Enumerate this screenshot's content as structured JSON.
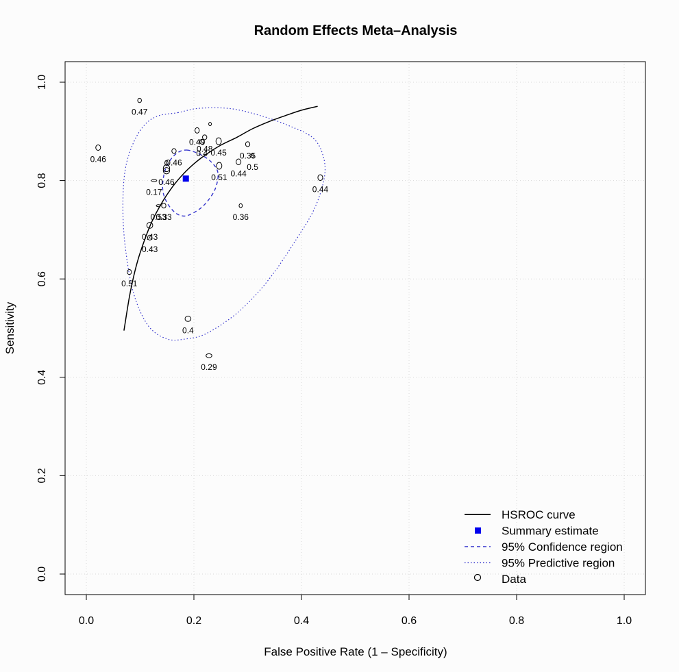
{
  "chart_data": {
    "type": "scatter",
    "title": "Random Effects Meta–Analysis",
    "xlabel": "False Positive Rate (1 – Specificity)",
    "ylabel": "Sensitivity",
    "xlim": [
      0,
      1
    ],
    "ylim": [
      0,
      1
    ],
    "xticks": [
      "0.0",
      "0.2",
      "0.4",
      "0.6",
      "0.8",
      "1.0"
    ],
    "yticks": [
      "0.0",
      "0.2",
      "0.4",
      "0.6",
      "0.8",
      "1.0"
    ],
    "grid": true,
    "legend_position": "bottom-right",
    "legend": [
      {
        "label": "HSROC curve",
        "style": "solid-line",
        "color": "#000000"
      },
      {
        "label": "Summary estimate",
        "style": "filled-square",
        "color": "#0000ee"
      },
      {
        "label": "95% Confidence region",
        "style": "dashed-line",
        "color": "#3333cc"
      },
      {
        "label": "95% Predictive region",
        "style": "dotted-line",
        "color": "#3333cc"
      },
      {
        "label": "Data",
        "style": "open-circle",
        "color": "#000000"
      }
    ],
    "summary_estimate": {
      "x": 0.185,
      "y": 0.804
    },
    "hsroc_curve": [
      {
        "x": 0.07,
        "y": 0.495
      },
      {
        "x": 0.08,
        "y": 0.563
      },
      {
        "x": 0.09,
        "y": 0.614
      },
      {
        "x": 0.1,
        "y": 0.653
      },
      {
        "x": 0.12,
        "y": 0.712
      },
      {
        "x": 0.14,
        "y": 0.754
      },
      {
        "x": 0.16,
        "y": 0.787
      },
      {
        "x": 0.18,
        "y": 0.813
      },
      {
        "x": 0.2,
        "y": 0.834
      },
      {
        "x": 0.22,
        "y": 0.851
      },
      {
        "x": 0.25,
        "y": 0.872
      },
      {
        "x": 0.28,
        "y": 0.888
      },
      {
        "x": 0.31,
        "y": 0.906
      },
      {
        "x": 0.34,
        "y": 0.92
      },
      {
        "x": 0.37,
        "y": 0.932
      },
      {
        "x": 0.4,
        "y": 0.943
      },
      {
        "x": 0.43,
        "y": 0.951
      }
    ],
    "confidence_region": [
      {
        "x": 0.187,
        "y": 0.862
      },
      {
        "x": 0.208,
        "y": 0.855
      },
      {
        "x": 0.228,
        "y": 0.842
      },
      {
        "x": 0.243,
        "y": 0.822
      },
      {
        "x": 0.244,
        "y": 0.8
      },
      {
        "x": 0.236,
        "y": 0.775
      },
      {
        "x": 0.217,
        "y": 0.748
      },
      {
        "x": 0.195,
        "y": 0.732
      },
      {
        "x": 0.18,
        "y": 0.728
      },
      {
        "x": 0.165,
        "y": 0.735
      },
      {
        "x": 0.15,
        "y": 0.755
      },
      {
        "x": 0.142,
        "y": 0.782
      },
      {
        "x": 0.145,
        "y": 0.815
      },
      {
        "x": 0.155,
        "y": 0.84
      },
      {
        "x": 0.17,
        "y": 0.857
      }
    ],
    "predictive_region": [
      {
        "x": 0.17,
        "y": 0.938
      },
      {
        "x": 0.21,
        "y": 0.947
      },
      {
        "x": 0.27,
        "y": 0.946
      },
      {
        "x": 0.33,
        "y": 0.93
      },
      {
        "x": 0.38,
        "y": 0.91
      },
      {
        "x": 0.42,
        "y": 0.888
      },
      {
        "x": 0.439,
        "y": 0.855
      },
      {
        "x": 0.443,
        "y": 0.81
      },
      {
        "x": 0.425,
        "y": 0.745
      },
      {
        "x": 0.39,
        "y": 0.68
      },
      {
        "x": 0.34,
        "y": 0.6
      },
      {
        "x": 0.285,
        "y": 0.535
      },
      {
        "x": 0.225,
        "y": 0.49
      },
      {
        "x": 0.185,
        "y": 0.478
      },
      {
        "x": 0.15,
        "y": 0.478
      },
      {
        "x": 0.115,
        "y": 0.505
      },
      {
        "x": 0.088,
        "y": 0.57
      },
      {
        "x": 0.073,
        "y": 0.66
      },
      {
        "x": 0.068,
        "y": 0.74
      },
      {
        "x": 0.072,
        "y": 0.82
      },
      {
        "x": 0.088,
        "y": 0.878
      },
      {
        "x": 0.11,
        "y": 0.915
      },
      {
        "x": 0.135,
        "y": 0.932
      }
    ],
    "points": [
      {
        "x": 0.099,
        "y": 0.963,
        "label": "0.47",
        "rx": 0.0035,
        "ry": 0.0045
      },
      {
        "x": 0.022,
        "y": 0.867,
        "label": "0.46",
        "rx": 0.0045,
        "ry": 0.0055
      },
      {
        "x": 0.23,
        "y": 0.915,
        "label": "",
        "rx": 0.0025,
        "ry": 0.0035
      },
      {
        "x": 0.206,
        "y": 0.902,
        "label": "0.49",
        "rx": 0.004,
        "ry": 0.0055
      },
      {
        "x": 0.22,
        "y": 0.888,
        "label": "0.48",
        "rx": 0.004,
        "ry": 0.005
      },
      {
        "x": 0.246,
        "y": 0.88,
        "label": "0.45",
        "rx": 0.005,
        "ry": 0.007
      },
      {
        "x": 0.215,
        "y": 0.879,
        "label": "0.4",
        "rx": 0.004,
        "ry": 0.005
      },
      {
        "x": 0.3,
        "y": 0.874,
        "label": "0.35",
        "rx": 0.004,
        "ry": 0.005
      },
      {
        "x": 0.163,
        "y": 0.86,
        "label": "0.46",
        "rx": 0.004,
        "ry": 0.005
      },
      {
        "x": 0.309,
        "y": 0.851,
        "label": "0.5",
        "rx": 0.003,
        "ry": 0.004
      },
      {
        "x": 0.283,
        "y": 0.838,
        "label": "0.44",
        "rx": 0.0045,
        "ry": 0.006
      },
      {
        "x": 0.149,
        "y": 0.836,
        "label": "",
        "rx": 0.003,
        "ry": 0.005
      },
      {
        "x": 0.247,
        "y": 0.83,
        "label": "0.51",
        "rx": 0.005,
        "ry": 0.007
      },
      {
        "x": 0.149,
        "y": 0.825,
        "label": "",
        "rx": 0.006,
        "ry": 0.007
      },
      {
        "x": 0.149,
        "y": 0.82,
        "label": "0.46",
        "rx": 0.006,
        "ry": 0.0065
      },
      {
        "x": 0.435,
        "y": 0.806,
        "label": "0.44",
        "rx": 0.0045,
        "ry": 0.006
      },
      {
        "x": 0.126,
        "y": 0.8,
        "label": "0.17",
        "rx": 0.005,
        "ry": 0.002
      },
      {
        "x": 0.287,
        "y": 0.749,
        "label": "0.36",
        "rx": 0.003,
        "ry": 0.004
      },
      {
        "x": 0.134,
        "y": 0.749,
        "label": "0.53",
        "rx": 0.004,
        "ry": 0.002
      },
      {
        "x": 0.144,
        "y": 0.749,
        "label": "0.33",
        "rx": 0.004,
        "ry": 0.005
      },
      {
        "x": 0.118,
        "y": 0.709,
        "label": "0.43",
        "rx": 0.0055,
        "ry": 0.006
      },
      {
        "x": 0.118,
        "y": 0.684,
        "label": "0.43",
        "rx": 0.004,
        "ry": 0.005
      },
      {
        "x": 0.08,
        "y": 0.614,
        "label": "0.51",
        "rx": 0.004,
        "ry": 0.005
      },
      {
        "x": 0.189,
        "y": 0.519,
        "label": "0.4",
        "rx": 0.0055,
        "ry": 0.0055
      },
      {
        "x": 0.228,
        "y": 0.444,
        "label": "0.29",
        "rx": 0.0055,
        "ry": 0.004
      }
    ]
  }
}
